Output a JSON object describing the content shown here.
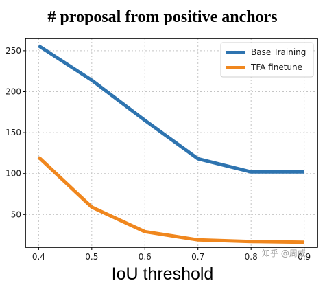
{
  "chart_data": {
    "type": "line",
    "title": "# proposal from positive anchors",
    "xlabel": "IoU threshold",
    "ylabel": "",
    "x": [
      0.4,
      0.5,
      0.6,
      0.7,
      0.8,
      0.9
    ],
    "x_tick_labels": [
      "0.4",
      "0.5",
      "0.6",
      "0.7",
      "0.8",
      "0.9"
    ],
    "y_ticks": [
      50,
      100,
      150,
      200,
      250
    ],
    "y_tick_labels": [
      "50",
      "100",
      "150",
      "200",
      "250"
    ],
    "xlim": [
      0.375,
      0.925
    ],
    "ylim": [
      10,
      265
    ],
    "grid": true,
    "legend_position": "top-right",
    "series": [
      {
        "name": "Base Training",
        "color": "#2e74b0",
        "values": [
          256,
          214,
          165,
          118,
          102,
          102
        ]
      },
      {
        "name": "TFA finetune",
        "color": "#f0871e",
        "values": [
          120,
          59,
          29,
          19,
          17,
          16
        ]
      }
    ]
  },
  "watermark": "知乎 @周威"
}
